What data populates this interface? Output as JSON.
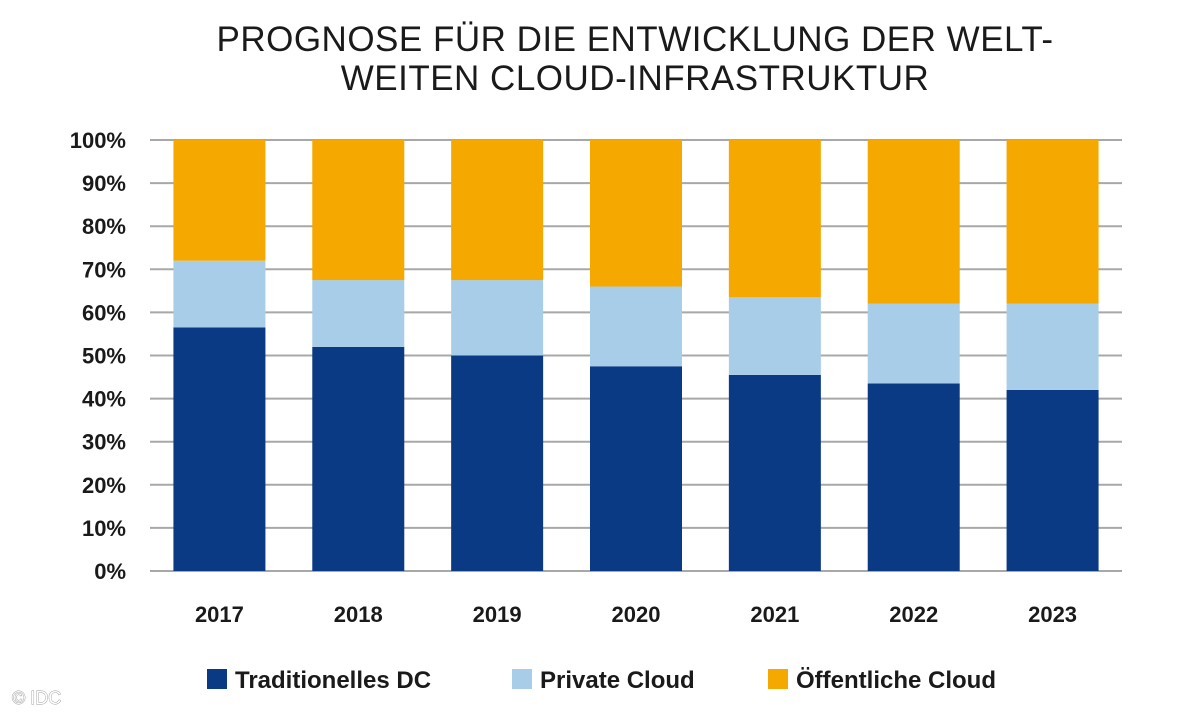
{
  "chart_data": {
    "type": "bar",
    "stacked": true,
    "title": [
      "PROGNOSE FÜR DIE ENTWICKLUNG DER WELT-",
      "WEITEN CLOUD-INFRASTRUKTUR"
    ],
    "categories": [
      "2017",
      "2018",
      "2019",
      "2020",
      "2021",
      "2022",
      "2023"
    ],
    "series": [
      {
        "name": "Traditionelles DC",
        "color": "#0b3a85",
        "values": [
          56.5,
          52,
          50,
          47.5,
          45.5,
          43.5,
          42
        ]
      },
      {
        "name": "Private Cloud",
        "color": "#a8cde8",
        "values": [
          15.5,
          15.5,
          17.5,
          18.5,
          18,
          18.5,
          20
        ]
      },
      {
        "name": "Öffentliche Cloud",
        "color": "#f5a800",
        "values": [
          28,
          32.5,
          32.5,
          34,
          36.5,
          38,
          38
        ]
      }
    ],
    "yticks": [
      "0%",
      "10%",
      "20%",
      "30%",
      "40%",
      "50%",
      "60%",
      "70%",
      "80%",
      "90%",
      "100%"
    ],
    "ylim": [
      0,
      100
    ],
    "grid": true,
    "legend_position": "bottom"
  },
  "credit": "© IDC"
}
